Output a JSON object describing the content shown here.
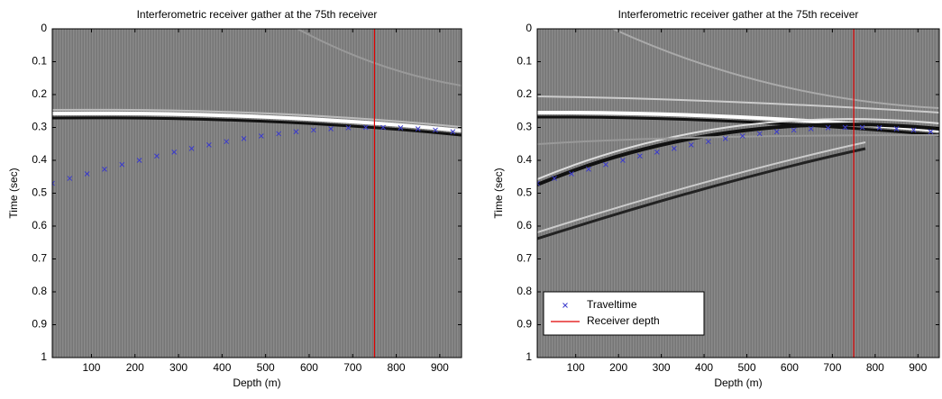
{
  "chart_data": [
    {
      "type": "scatter",
      "title": "Interferometric receiver gather at the 75th receiver",
      "x_label": "Depth (m)",
      "y_label": "Time (sec)",
      "xlim": [
        10,
        950
      ],
      "ylim": [
        0,
        1
      ],
      "y_reversed": true,
      "xticks": [
        100,
        200,
        300,
        400,
        500,
        600,
        700,
        800,
        900
      ],
      "yticks": [
        0,
        0.1,
        0.2,
        0.3,
        0.4,
        0.5,
        0.6,
        0.7,
        0.8,
        0.9,
        1
      ],
      "series": [
        {
          "color": "#3a3acc",
          "x": [
            10,
            50,
            90,
            130,
            170,
            210,
            250,
            290,
            330,
            370,
            410,
            450,
            490,
            530,
            570,
            610,
            650,
            690,
            730,
            770,
            810,
            850,
            890,
            930
          ],
          "values": [
            0.47,
            0.455,
            0.441,
            0.427,
            0.413,
            0.4,
            0.387,
            0.375,
            0.364,
            0.353,
            0.343,
            0.334,
            0.326,
            0.319,
            0.313,
            0.308,
            0.304,
            0.301,
            0.3,
            0.3,
            0.301,
            0.304,
            0.308,
            0.313
          ]
        }
      ],
      "reference_lines": [
        {
          "x": 750,
          "color": "#e00000"
        }
      ]
    },
    {
      "type": "scatter",
      "title": "Interferometric receiver gather at the 75th receiver",
      "x_label": "Depth (m)",
      "y_label": "Time (sec)",
      "xlim": [
        10,
        950
      ],
      "ylim": [
        0,
        1
      ],
      "y_reversed": true,
      "xticks": [
        100,
        200,
        300,
        400,
        500,
        600,
        700,
        800,
        900
      ],
      "yticks": [
        0,
        0.1,
        0.2,
        0.3,
        0.4,
        0.5,
        0.6,
        0.7,
        0.8,
        0.9,
        1
      ],
      "legend": "lower left",
      "series": [
        {
          "name": "Traveltime",
          "color": "#3a3acc",
          "x": [
            10,
            50,
            90,
            130,
            170,
            210,
            250,
            290,
            330,
            370,
            410,
            450,
            490,
            530,
            570,
            610,
            650,
            690,
            730,
            770,
            810,
            850,
            890,
            930
          ],
          "values": [
            0.47,
            0.455,
            0.441,
            0.427,
            0.413,
            0.4,
            0.387,
            0.375,
            0.364,
            0.353,
            0.343,
            0.334,
            0.326,
            0.319,
            0.313,
            0.308,
            0.304,
            0.301,
            0.3,
            0.3,
            0.301,
            0.304,
            0.308,
            0.313
          ]
        }
      ],
      "reference_lines": [
        {
          "name": "Receiver depth",
          "x": 750,
          "color": "#e00000"
        }
      ]
    }
  ]
}
